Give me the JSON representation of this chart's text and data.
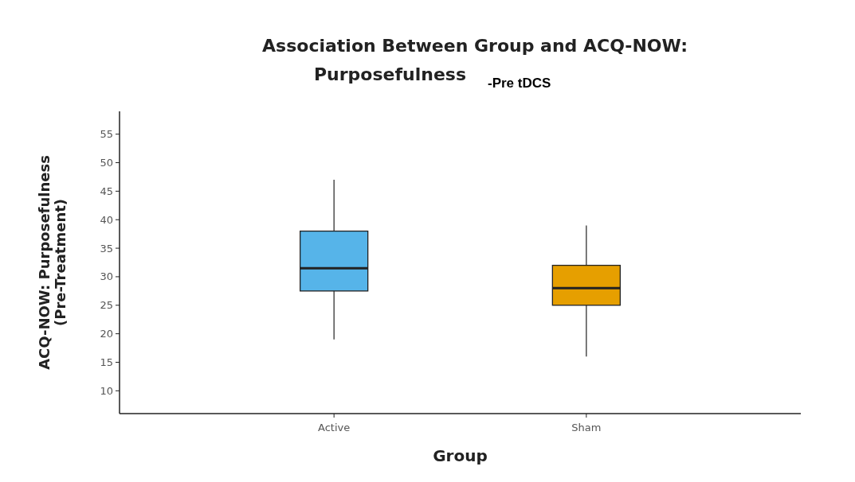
{
  "chart_data": {
    "type": "box",
    "title": "Association Between Group and ACQ-NOW:\nPurposefulness",
    "subtitle": "-Pre tDCS",
    "xlabel": "Group",
    "ylabel": "ACQ-NOW: Purposefulness\n(Pre-Treatment)",
    "categories": [
      "Active",
      "Sham"
    ],
    "colors": [
      "#56b4e9",
      "#e69f00"
    ],
    "boxes": [
      {
        "low": 19,
        "q1": 27.5,
        "median": 31.5,
        "q3": 38,
        "high": 47
      },
      {
        "low": 16,
        "q1": 25,
        "median": 28,
        "q3": 32,
        "high": 39
      }
    ],
    "ylim": [
      6,
      59
    ],
    "yticks": [
      10,
      15,
      20,
      25,
      30,
      35,
      40,
      45,
      50,
      55
    ],
    "grid": false
  }
}
